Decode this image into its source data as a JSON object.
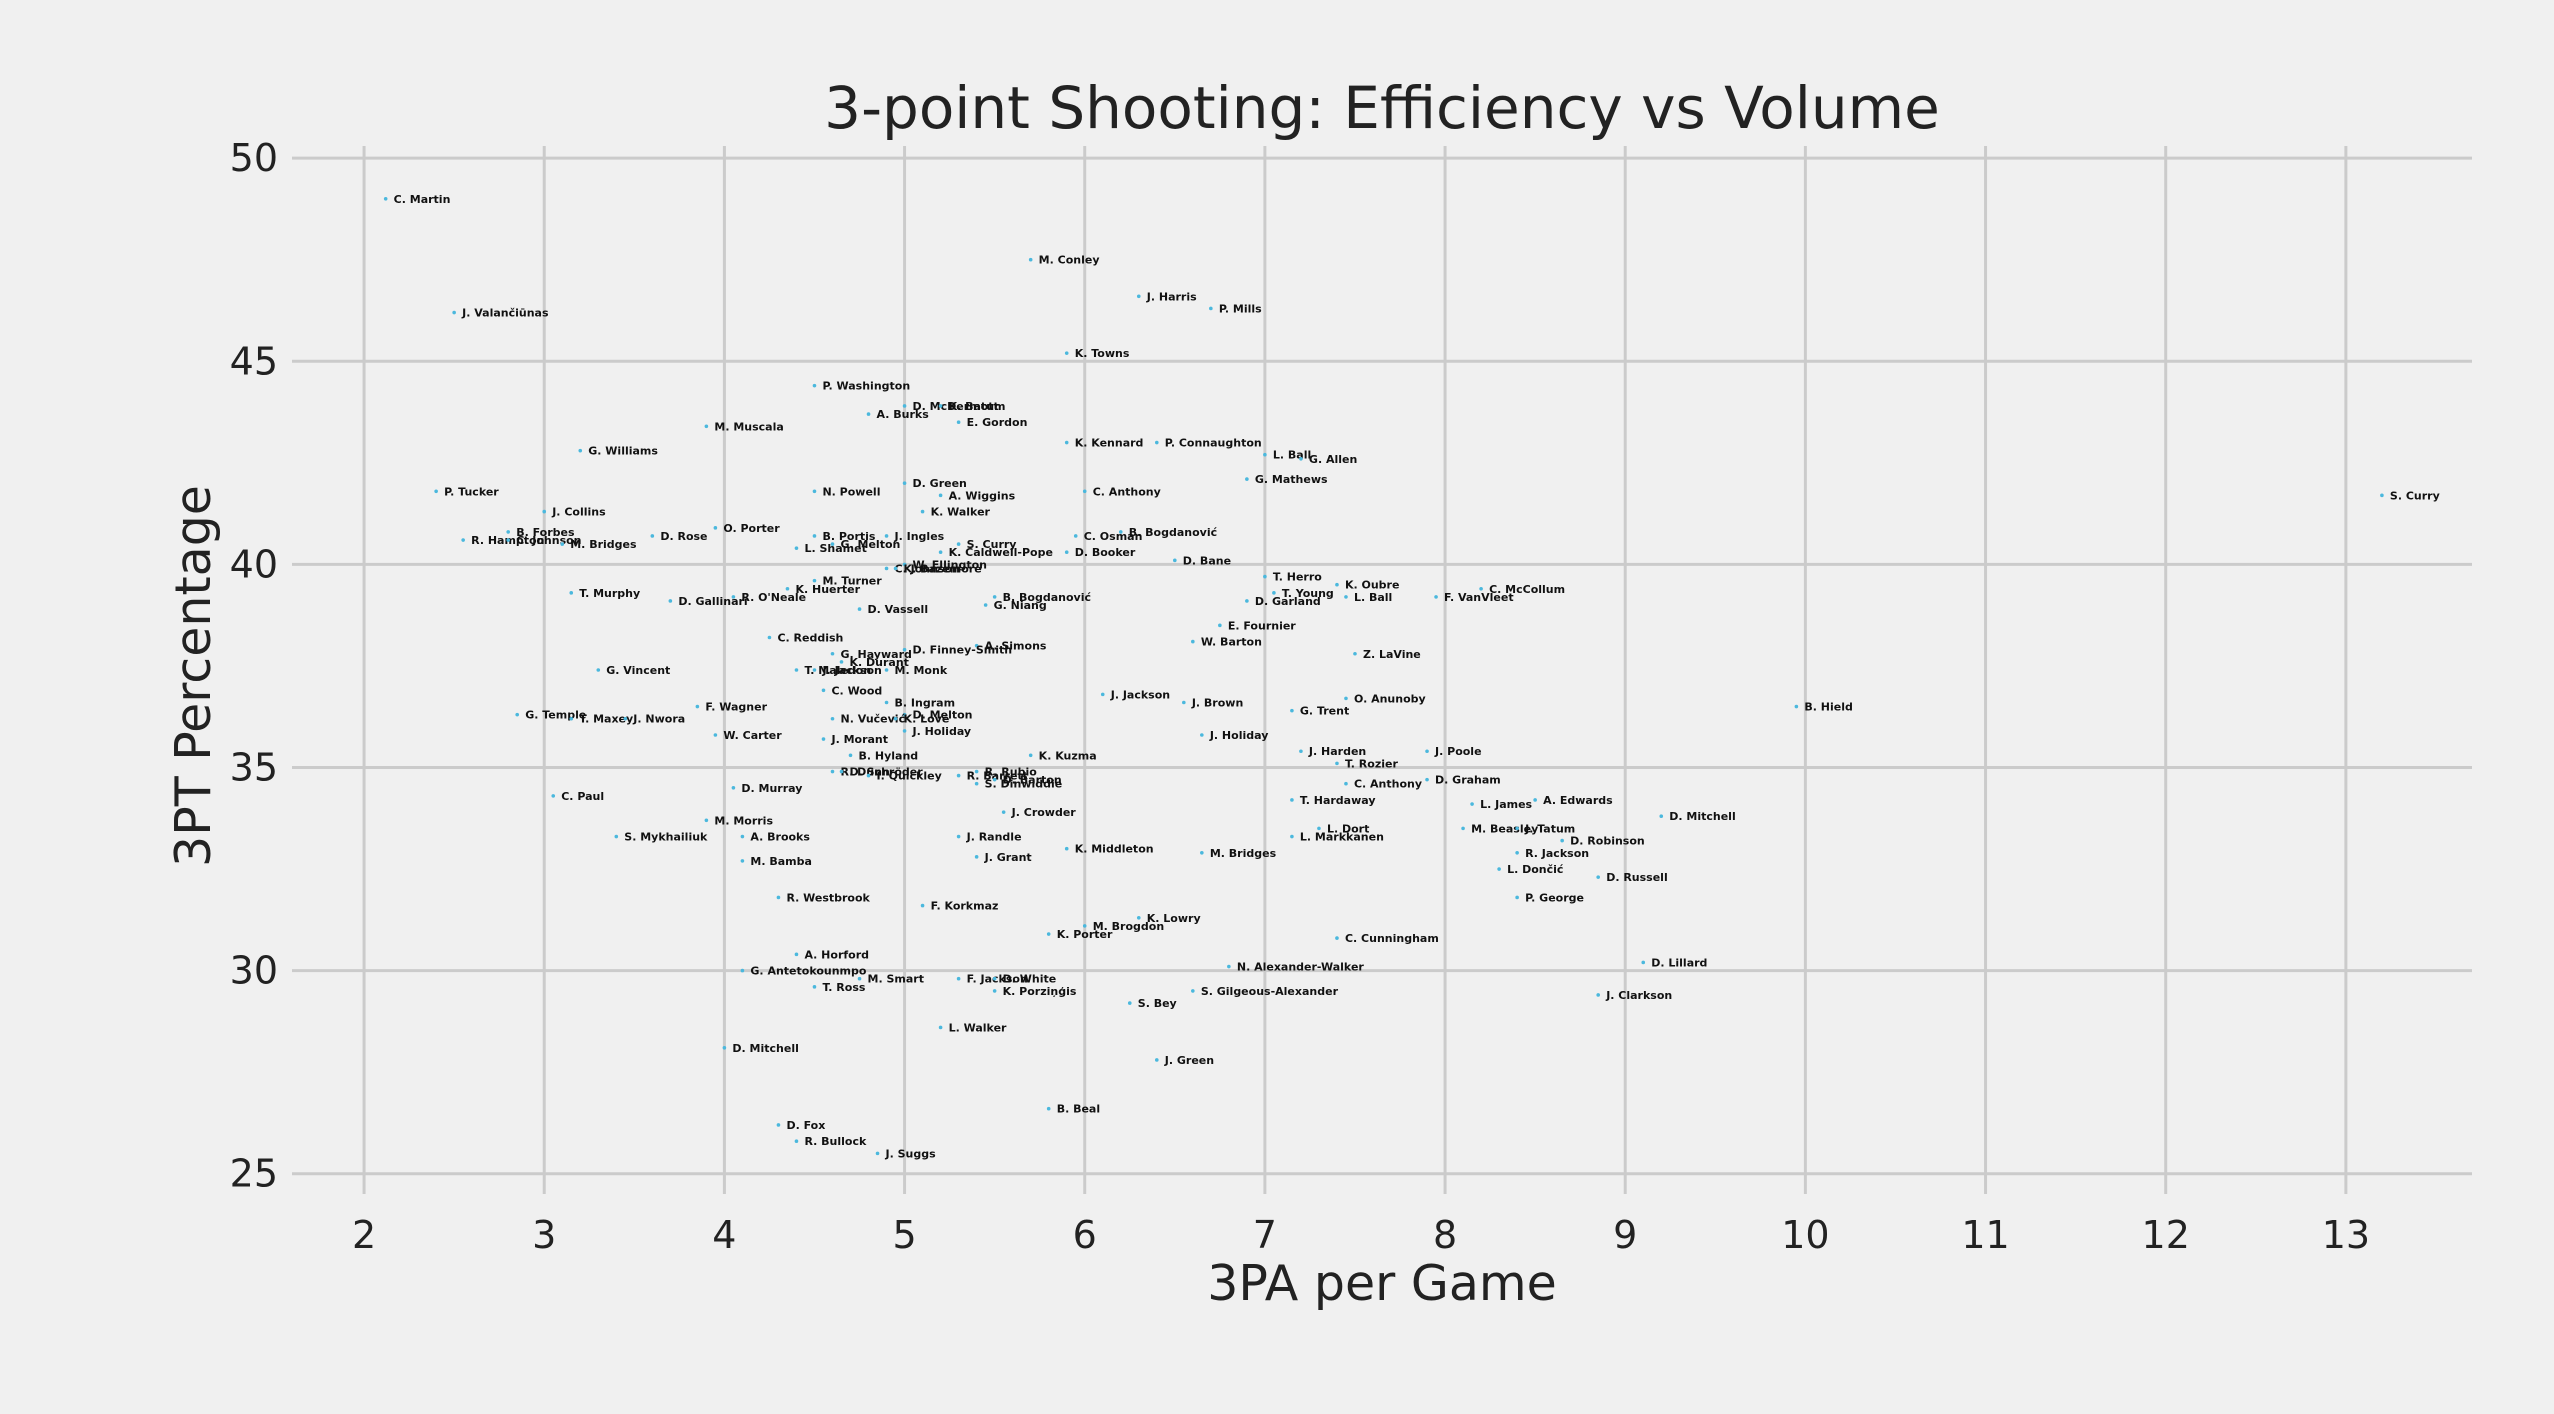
{
  "chart_data": {
    "type": "scatter",
    "title": "3-point Shooting: Efficiency vs Volume",
    "xlabel": "3PA per Game",
    "ylabel": "3PT Percentage",
    "xlim": [
      1.6,
      13.7
    ],
    "ylim": [
      24.5,
      50.3
    ],
    "xticks": [
      2,
      3,
      4,
      5,
      6,
      7,
      8,
      9,
      10,
      11,
      12,
      13
    ],
    "yticks": [
      25,
      30,
      35,
      40,
      45,
      50
    ],
    "grid": true,
    "points": [
      {
        "label": "C. Martin",
        "x": 2.12,
        "y": 49.0
      },
      {
        "label": "J. Valančiūnas",
        "x": 2.5,
        "y": 46.2
      },
      {
        "label": "M. Conley",
        "x": 5.7,
        "y": 47.5
      },
      {
        "label": "J. Harris",
        "x": 6.3,
        "y": 46.6
      },
      {
        "label": "P. Mills",
        "x": 6.7,
        "y": 46.3
      },
      {
        "label": "K. Towns",
        "x": 5.9,
        "y": 45.2
      },
      {
        "label": "P. Washington",
        "x": 4.5,
        "y": 44.4
      },
      {
        "label": "D. McDermott",
        "x": 5.0,
        "y": 43.9
      },
      {
        "label": "K. Batum",
        "x": 5.2,
        "y": 43.9
      },
      {
        "label": "A. Burks",
        "x": 4.8,
        "y": 43.7
      },
      {
        "label": "E. Gordon",
        "x": 5.3,
        "y": 43.5
      },
      {
        "label": "M. Muscala",
        "x": 3.9,
        "y": 43.4
      },
      {
        "label": "K. Kennard",
        "x": 5.9,
        "y": 43.0
      },
      {
        "label": "P. Connaughton",
        "x": 6.4,
        "y": 43.0
      },
      {
        "label": "G. Williams",
        "x": 3.2,
        "y": 42.8
      },
      {
        "label": "L. Ball",
        "x": 7.0,
        "y": 42.7
      },
      {
        "label": "G. Allen",
        "x": 7.2,
        "y": 42.6
      },
      {
        "label": "G. Mathews",
        "x": 6.9,
        "y": 42.1
      },
      {
        "label": "D. Green",
        "x": 5.0,
        "y": 42.0
      },
      {
        "label": "P. Tucker",
        "x": 2.4,
        "y": 41.8
      },
      {
        "label": "N. Powell",
        "x": 4.5,
        "y": 41.8
      },
      {
        "label": "C. Anthony",
        "x": 6.0,
        "y": 41.8
      },
      {
        "label": "A. Wiggins",
        "x": 5.2,
        "y": 41.7
      },
      {
        "label": "S. Curry",
        "x": 13.2,
        "y": 41.7
      },
      {
        "label": "J. Collins",
        "x": 3.0,
        "y": 41.3
      },
      {
        "label": "K. Walker",
        "x": 5.1,
        "y": 41.3
      },
      {
        "label": "O. Porter",
        "x": 3.95,
        "y": 40.9
      },
      {
        "label": "B. Forbes",
        "x": 2.8,
        "y": 40.8
      },
      {
        "label": "D. Rose",
        "x": 3.6,
        "y": 40.7
      },
      {
        "label": "B. Bogdanović",
        "x": 6.2,
        "y": 40.8
      },
      {
        "label": "R. Hampton",
        "x": 2.55,
        "y": 40.6
      },
      {
        "label": "C. Johnson",
        "x": 2.8,
        "y": 40.6
      },
      {
        "label": "M. Bridges",
        "x": 3.1,
        "y": 40.5
      },
      {
        "label": "B. Portis",
        "x": 4.5,
        "y": 40.7
      },
      {
        "label": "J. Ingles",
        "x": 4.9,
        "y": 40.7
      },
      {
        "label": "G. Melton",
        "x": 4.6,
        "y": 40.5
      },
      {
        "label": "L. Shamet",
        "x": 4.4,
        "y": 40.4
      },
      {
        "label": "C. Osman",
        "x": 5.95,
        "y": 40.7
      },
      {
        "label": "S. Curry",
        "x": 5.3,
        "y": 40.5
      },
      {
        "label": "K. Caldwell-Pope",
        "x": 5.2,
        "y": 40.3
      },
      {
        "label": "D. Booker",
        "x": 5.9,
        "y": 40.3
      },
      {
        "label": "W. Ellington",
        "x": 5.0,
        "y": 40.0
      },
      {
        "label": "D. Bane",
        "x": 6.5,
        "y": 40.1
      },
      {
        "label": "C. Johnson",
        "x": 4.9,
        "y": 39.9
      },
      {
        "label": "K. Bazemore",
        "x": 4.95,
        "y": 39.9
      },
      {
        "label": "M. Turner",
        "x": 4.5,
        "y": 39.6
      },
      {
        "label": "T. Herro",
        "x": 7.0,
        "y": 39.7
      },
      {
        "label": "K. Huerter",
        "x": 4.35,
        "y": 39.4
      },
      {
        "label": "K. Oubre",
        "x": 7.4,
        "y": 39.5
      },
      {
        "label": "C. McCollum",
        "x": 8.2,
        "y": 39.4
      },
      {
        "label": "T. Young",
        "x": 7.05,
        "y": 39.3
      },
      {
        "label": "T. Murphy",
        "x": 3.15,
        "y": 39.3
      },
      {
        "label": "R. O'Neale",
        "x": 4.05,
        "y": 39.2
      },
      {
        "label": "B. Bogdanović",
        "x": 5.5,
        "y": 39.2
      },
      {
        "label": "L. Ball",
        "x": 7.45,
        "y": 39.2
      },
      {
        "label": "F. VanVleet",
        "x": 7.95,
        "y": 39.2
      },
      {
        "label": "D. Gallinari",
        "x": 3.7,
        "y": 39.1
      },
      {
        "label": "G. Niang",
        "x": 5.45,
        "y": 39.0
      },
      {
        "label": "D. Garland",
        "x": 6.9,
        "y": 39.1
      },
      {
        "label": "D. Vassell",
        "x": 4.75,
        "y": 38.9
      },
      {
        "label": "E. Fournier",
        "x": 6.75,
        "y": 38.5
      },
      {
        "label": "C. Reddish",
        "x": 4.25,
        "y": 38.2
      },
      {
        "label": "A. Simons",
        "x": 5.4,
        "y": 38.0
      },
      {
        "label": "W. Barton",
        "x": 6.6,
        "y": 38.1
      },
      {
        "label": "G. Hayward",
        "x": 4.6,
        "y": 37.8
      },
      {
        "label": "D. Finney-Smith",
        "x": 5.0,
        "y": 37.9
      },
      {
        "label": "K. Durant",
        "x": 4.65,
        "y": 37.6
      },
      {
        "label": "Z. LaVine",
        "x": 7.5,
        "y": 37.8
      },
      {
        "label": "G. Vincent",
        "x": 3.3,
        "y": 37.4
      },
      {
        "label": "T. Maledon",
        "x": 4.4,
        "y": 37.4
      },
      {
        "label": "J. Jackson",
        "x": 4.5,
        "y": 37.4
      },
      {
        "label": "M. Monk",
        "x": 4.9,
        "y": 37.4
      },
      {
        "label": "C. Wood",
        "x": 4.55,
        "y": 36.9
      },
      {
        "label": "J. Jackson",
        "x": 6.1,
        "y": 36.8
      },
      {
        "label": "O. Anunoby",
        "x": 7.45,
        "y": 36.7
      },
      {
        "label": "B. Ingram",
        "x": 4.9,
        "y": 36.6
      },
      {
        "label": "J. Brown",
        "x": 6.55,
        "y": 36.6
      },
      {
        "label": "F. Wagner",
        "x": 3.85,
        "y": 36.5
      },
      {
        "label": "B. Hield",
        "x": 9.95,
        "y": 36.5
      },
      {
        "label": "G. Trent",
        "x": 7.15,
        "y": 36.4
      },
      {
        "label": "D. Melton",
        "x": 5.0,
        "y": 36.3
      },
      {
        "label": "G. Temple",
        "x": 2.85,
        "y": 36.3
      },
      {
        "label": "T. Maxey",
        "x": 3.15,
        "y": 36.2
      },
      {
        "label": "J. Nwora",
        "x": 3.45,
        "y": 36.2
      },
      {
        "label": "N. Vučević",
        "x": 4.6,
        "y": 36.2
      },
      {
        "label": "K. Love",
        "x": 4.95,
        "y": 36.2
      },
      {
        "label": "J. Holiday",
        "x": 5.0,
        "y": 35.9
      },
      {
        "label": "W. Carter",
        "x": 3.95,
        "y": 35.8
      },
      {
        "label": "J. Holiday",
        "x": 6.65,
        "y": 35.8
      },
      {
        "label": "J. Morant",
        "x": 4.55,
        "y": 35.7
      },
      {
        "label": "J. Harden",
        "x": 7.2,
        "y": 35.4
      },
      {
        "label": "J. Poole",
        "x": 7.9,
        "y": 35.4
      },
      {
        "label": "B. Hyland",
        "x": 4.7,
        "y": 35.3
      },
      {
        "label": "K. Kuzma",
        "x": 5.7,
        "y": 35.3
      },
      {
        "label": "T. Rozier",
        "x": 7.4,
        "y": 35.1
      },
      {
        "label": "R. Dunn",
        "x": 4.6,
        "y": 34.9
      },
      {
        "label": "D. Schröder",
        "x": 4.65,
        "y": 34.9
      },
      {
        "label": "R. Rubio",
        "x": 5.4,
        "y": 34.9
      },
      {
        "label": "I. Quickley",
        "x": 4.8,
        "y": 34.8
      },
      {
        "label": "R. Barrett",
        "x": 5.3,
        "y": 34.8
      },
      {
        "label": "D. Barton",
        "x": 5.5,
        "y": 34.7
      },
      {
        "label": "S. Dinwiddie",
        "x": 5.4,
        "y": 34.6
      },
      {
        "label": "C. Anthony",
        "x": 7.45,
        "y": 34.6
      },
      {
        "label": "D. Graham",
        "x": 7.9,
        "y": 34.7
      },
      {
        "label": "D. Murray",
        "x": 4.05,
        "y": 34.5
      },
      {
        "label": "C. Paul",
        "x": 3.05,
        "y": 34.3
      },
      {
        "label": "T. Hardaway",
        "x": 7.15,
        "y": 34.2
      },
      {
        "label": "L. James",
        "x": 8.15,
        "y": 34.1
      },
      {
        "label": "A. Edwards",
        "x": 8.5,
        "y": 34.2
      },
      {
        "label": "J. Crowder",
        "x": 5.55,
        "y": 33.9
      },
      {
        "label": "M. Morris",
        "x": 3.9,
        "y": 33.7
      },
      {
        "label": "D. Mitchell",
        "x": 9.2,
        "y": 33.8
      },
      {
        "label": "L. Dort",
        "x": 7.3,
        "y": 33.5
      },
      {
        "label": "M. Beasley",
        "x": 8.1,
        "y": 33.5
      },
      {
        "label": "J. Tatum",
        "x": 8.4,
        "y": 33.5
      },
      {
        "label": "L. Markkanen",
        "x": 7.15,
        "y": 33.3
      },
      {
        "label": "S. Mykhailiuk",
        "x": 3.4,
        "y": 33.3
      },
      {
        "label": "A. Brooks",
        "x": 4.1,
        "y": 33.3
      },
      {
        "label": "J. Randle",
        "x": 5.3,
        "y": 33.3
      },
      {
        "label": "D. Robinson",
        "x": 8.65,
        "y": 33.2
      },
      {
        "label": "K. Middleton",
        "x": 5.9,
        "y": 33.0
      },
      {
        "label": "M. Bridges",
        "x": 6.65,
        "y": 32.9
      },
      {
        "label": "R. Jackson",
        "x": 8.4,
        "y": 32.9
      },
      {
        "label": "J. Grant",
        "x": 5.4,
        "y": 32.8
      },
      {
        "label": "M. Bamba",
        "x": 4.1,
        "y": 32.7
      },
      {
        "label": "L. Dončić",
        "x": 8.3,
        "y": 32.5
      },
      {
        "label": "D. Russell",
        "x": 8.85,
        "y": 32.3
      },
      {
        "label": "R. Westbrook",
        "x": 4.3,
        "y": 31.8
      },
      {
        "label": "P. George",
        "x": 8.4,
        "y": 31.8
      },
      {
        "label": "F. Korkmaz",
        "x": 5.1,
        "y": 31.6
      },
      {
        "label": "K. Lowry",
        "x": 6.3,
        "y": 31.3
      },
      {
        "label": "M. Brogdon",
        "x": 6.0,
        "y": 31.1
      },
      {
        "label": "K. Porter",
        "x": 5.8,
        "y": 30.9
      },
      {
        "label": "C. Cunningham",
        "x": 7.4,
        "y": 30.8
      },
      {
        "label": "A. Horford",
        "x": 4.4,
        "y": 30.4
      },
      {
        "label": "D. Lillard",
        "x": 9.1,
        "y": 30.2
      },
      {
        "label": "N. Alexander-Walker",
        "x": 6.8,
        "y": 30.1
      },
      {
        "label": "G. Antetokounmpo",
        "x": 4.1,
        "y": 30.0
      },
      {
        "label": "M. Smart",
        "x": 4.75,
        "y": 29.8
      },
      {
        "label": "F. Jackson",
        "x": 5.3,
        "y": 29.8
      },
      {
        "label": "D. White",
        "x": 5.5,
        "y": 29.8
      },
      {
        "label": "T. Ross",
        "x": 4.5,
        "y": 29.6
      },
      {
        "label": "K. Porziņģis",
        "x": 5.5,
        "y": 29.5
      },
      {
        "label": "S. Gilgeous-Alexander",
        "x": 6.6,
        "y": 29.5
      },
      {
        "label": "J. Clarkson",
        "x": 8.85,
        "y": 29.4
      },
      {
        "label": "S. Bey",
        "x": 6.25,
        "y": 29.2
      },
      {
        "label": "L. Walker",
        "x": 5.2,
        "y": 28.6
      },
      {
        "label": "D. Mitchell",
        "x": 4.0,
        "y": 28.1
      },
      {
        "label": "J. Green",
        "x": 6.4,
        "y": 27.8
      },
      {
        "label": "B. Beal",
        "x": 5.8,
        "y": 26.6
      },
      {
        "label": "D. Fox",
        "x": 4.3,
        "y": 26.2
      },
      {
        "label": "R. Bullock",
        "x": 4.4,
        "y": 25.8
      },
      {
        "label": "J. Suggs",
        "x": 4.85,
        "y": 25.5
      }
    ]
  }
}
